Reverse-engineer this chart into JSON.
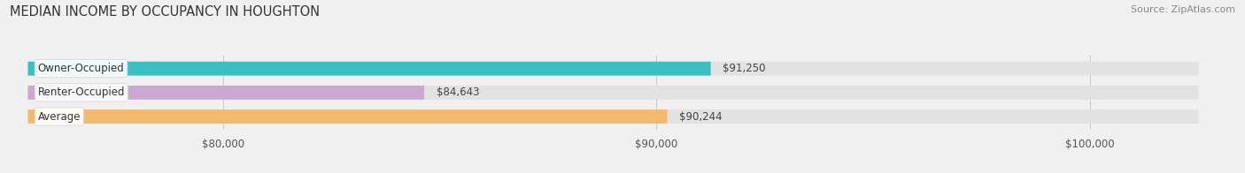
{
  "title": "MEDIAN INCOME BY OCCUPANCY IN HOUGHTON",
  "source": "Source: ZipAtlas.com",
  "categories": [
    "Owner-Occupied",
    "Renter-Occupied",
    "Average"
  ],
  "values": [
    91250,
    84643,
    90244
  ],
  "bar_colors": [
    "#3bbfbf",
    "#c9a8d4",
    "#f5b96e"
  ],
  "bar_labels": [
    "$91,250",
    "$84,643",
    "$90,244"
  ],
  "xlim": [
    75000,
    103000
  ],
  "xticks": [
    80000,
    90000,
    100000
  ],
  "xtick_labels": [
    "$80,000",
    "$90,000",
    "$100,000"
  ],
  "xstart": 75500,
  "background_color": "#f0f0f0",
  "bar_bg_color": "#e2e2e2",
  "title_fontsize": 10.5,
  "label_fontsize": 8.5,
  "source_fontsize": 8
}
